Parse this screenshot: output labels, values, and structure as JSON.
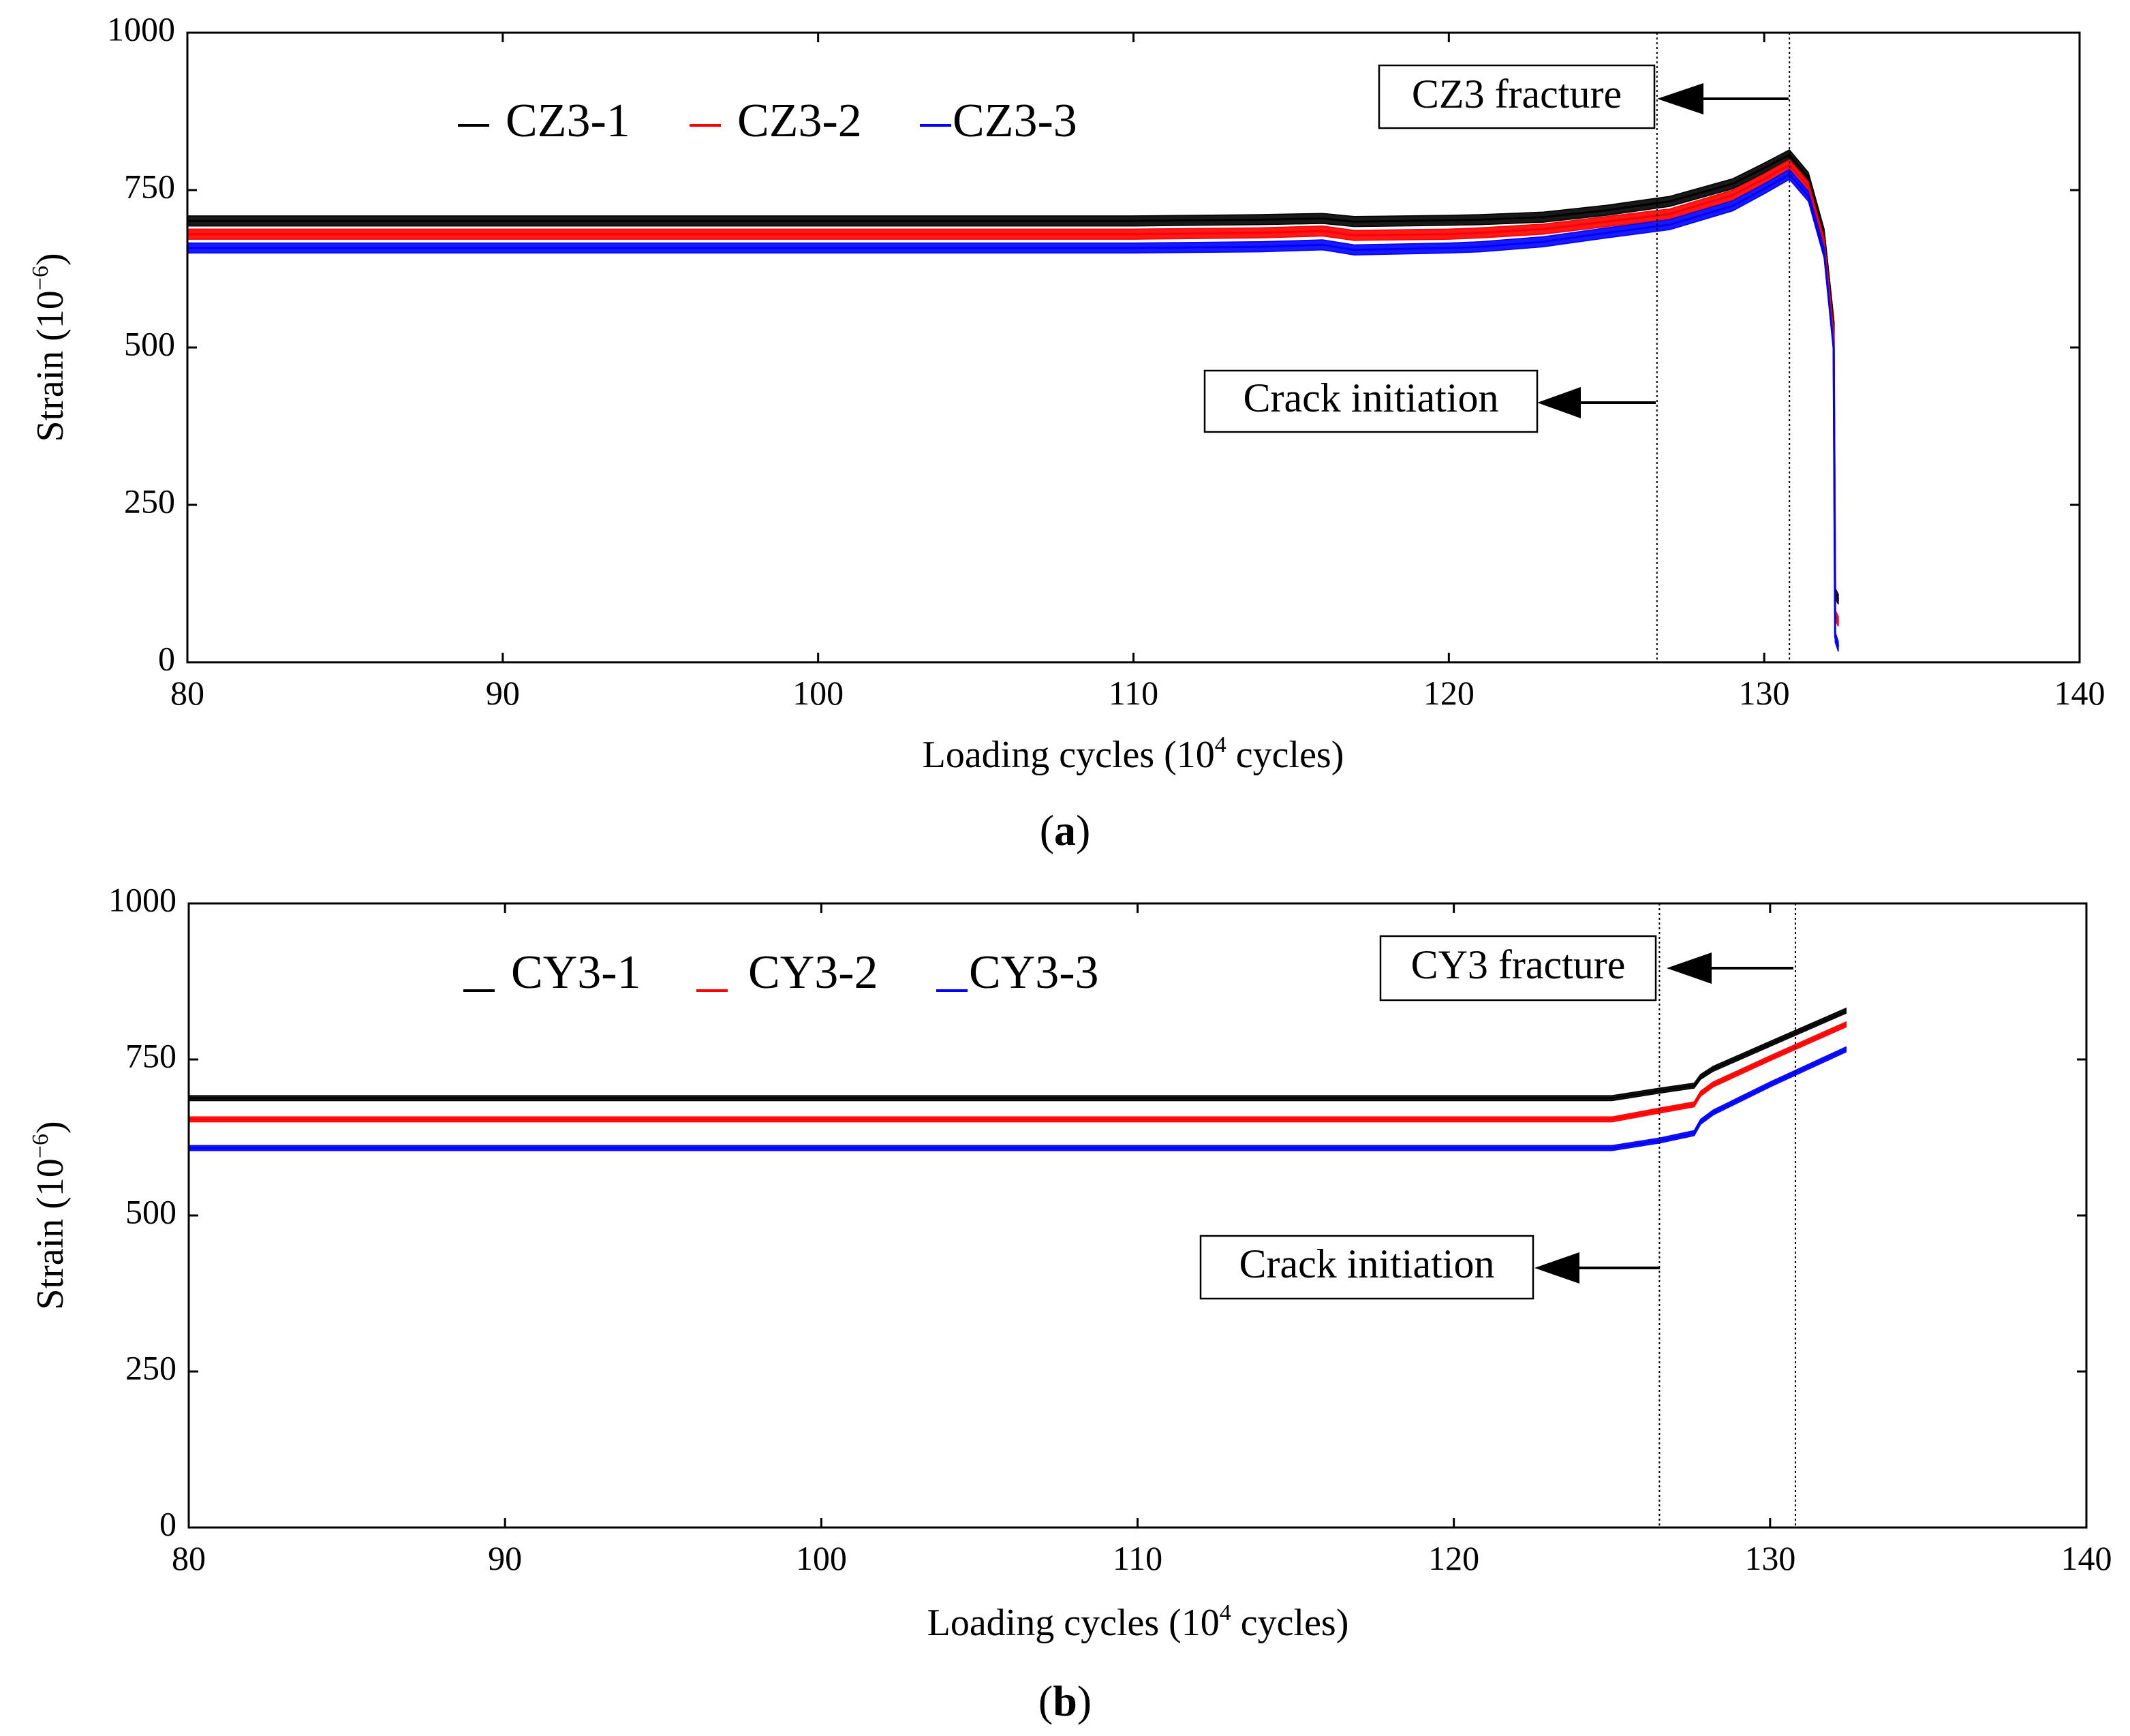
{
  "colors": {
    "black": "#000000",
    "red": "#ff0000",
    "blue": "#0000ff"
  },
  "chart_data": [
    {
      "type": "line",
      "panel_label": "a",
      "xlabel": {
        "main": "Loading cycles (10",
        "sup": "4",
        "tail": " cycles)"
      },
      "ylabel": {
        "main": "Strain (10",
        "sup": "−6",
        "tail": ")"
      },
      "xlim": [
        80,
        140
      ],
      "ylim": [
        0,
        1000
      ],
      "x_ticks": [
        "80",
        "90",
        "100",
        "110",
        "120",
        "130",
        "140"
      ],
      "y_ticks": [
        "0",
        "250",
        "500",
        "750",
        "1000"
      ],
      "vlines": [
        126.6,
        130.8
      ],
      "legend": [
        "CZ3-1",
        "CZ3-2",
        "CZ3-3"
      ],
      "annotations": [
        {
          "text": "CZ3 fracture",
          "x": 130.8,
          "y": 895
        },
        {
          "text": "Crack initiation",
          "x": 126.6,
          "y": 415
        }
      ],
      "series": [
        {
          "name": "CZ3-1",
          "color": "#000000",
          "band": 8,
          "x": [
            80,
            110,
            114,
            116,
            117,
            120,
            121,
            123,
            125,
            127,
            129,
            130,
            130.8,
            131.4,
            131.9,
            132.2,
            132.25,
            132.35
          ],
          "y": [
            701,
            701,
            703,
            705,
            700,
            702,
            703,
            707,
            718,
            732,
            760,
            785,
            806,
            770,
            680,
            540,
            110,
            100
          ]
        },
        {
          "name": "CZ3-2",
          "color": "#ff0000",
          "band": 8,
          "x": [
            80,
            110,
            114,
            116,
            117,
            120,
            121,
            123,
            125,
            127,
            129,
            130,
            130.8,
            131.4,
            131.9,
            132.2,
            132.25,
            132.35
          ],
          "y": [
            680,
            680,
            682,
            685,
            678,
            680,
            682,
            688,
            700,
            712,
            742,
            768,
            790,
            755,
            665,
            520,
            75,
            65
          ]
        },
        {
          "name": "CZ3-3",
          "color": "#0000ff",
          "band": 8,
          "x": [
            80,
            110,
            114,
            116,
            117,
            120,
            121,
            123,
            125,
            127,
            129,
            130,
            130.8,
            131.4,
            131.9,
            132.2,
            132.25,
            132.35
          ],
          "y": [
            658,
            658,
            660,
            663,
            655,
            658,
            660,
            668,
            682,
            695,
            725,
            752,
            775,
            740,
            650,
            500,
            40,
            25
          ]
        }
      ]
    },
    {
      "type": "line",
      "panel_label": "b",
      "xlabel": {
        "main": "Loading cycles (10",
        "sup": "4",
        "tail": " cycles)"
      },
      "ylabel": {
        "main": "Strain (10",
        "sup": "−6",
        "tail": ")"
      },
      "xlim": [
        80,
        140
      ],
      "ylim": [
        0,
        1000
      ],
      "x_ticks": [
        "80",
        "90",
        "100",
        "110",
        "120",
        "130",
        "140"
      ],
      "y_ticks": [
        "0",
        "250",
        "500",
        "750",
        "1000"
      ],
      "vlines": [
        126.5,
        130.8
      ],
      "legend": [
        "CY3-1",
        "CY3-2",
        "CY3-3"
      ],
      "annotations": [
        {
          "text": "CY3 fracture",
          "x": 130.8,
          "y": 890
        },
        {
          "text": "Crack initiation",
          "x": 126.5,
          "y": 410
        }
      ],
      "series": [
        {
          "name": "CY3-1",
          "color": "#000000",
          "band": 4,
          "x": [
            80,
            125,
            126.5,
            127.6,
            127.8,
            128.2,
            130,
            132.4
          ],
          "y": [
            688,
            688,
            700,
            708,
            722,
            735,
            775,
            828
          ]
        },
        {
          "name": "CY3-2",
          "color": "#ff0000",
          "band": 4,
          "x": [
            80,
            125,
            126.5,
            127.6,
            127.8,
            128.2,
            130,
            132.4
          ],
          "y": [
            654,
            654,
            668,
            678,
            695,
            710,
            752,
            806
          ]
        },
        {
          "name": "CY3-3",
          "color": "#0000ff",
          "band": 4,
          "x": [
            80,
            125,
            126.5,
            127.6,
            127.8,
            128.2,
            130,
            132.4
          ],
          "y": [
            608,
            608,
            620,
            632,
            650,
            665,
            710,
            766
          ]
        }
      ]
    }
  ]
}
